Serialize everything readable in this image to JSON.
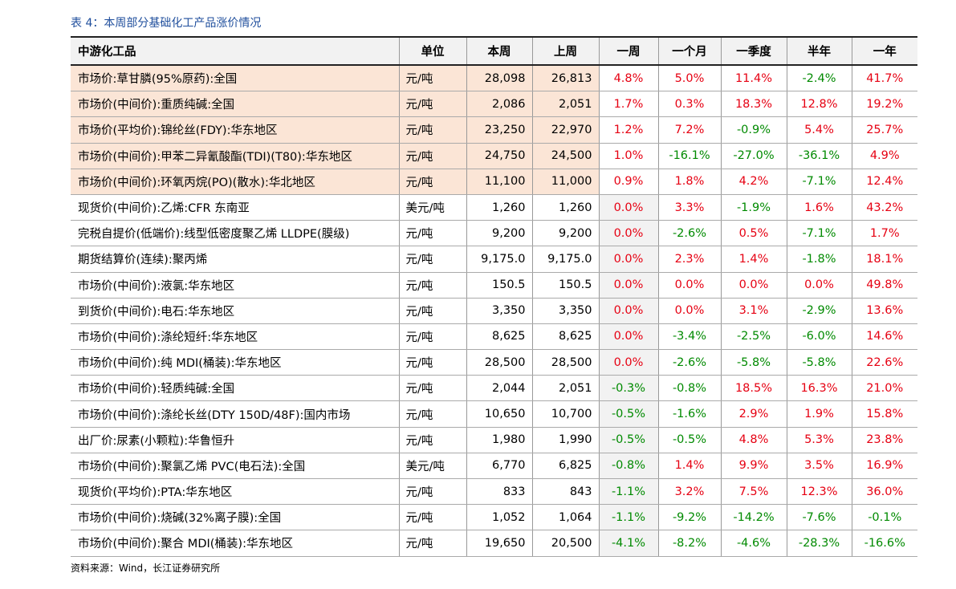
{
  "title": "表 4：本周部分基础化工产品涨价情况",
  "table": {
    "header": [
      "中游化工品",
      "单位",
      "本周",
      "上周",
      "一周",
      "一个月",
      "一季度",
      "半年",
      "一年"
    ],
    "rows": [
      [
        "市场价:草甘膦(95%原药):全国",
        "元/吨",
        "28,098",
        "26,813",
        "4.8%",
        "5.0%",
        "11.4%",
        "-2.4%",
        "41.7%"
      ],
      [
        "市场价(中间价):重质纯碱:全国",
        "元/吨",
        "2,086",
        "2,051",
        "1.7%",
        "0.3%",
        "18.3%",
        "12.8%",
        "19.2%"
      ],
      [
        "市场价(平均价):锦纶丝(FDY):华东地区",
        "元/吨",
        "23,250",
        "22,970",
        "1.2%",
        "7.2%",
        "-0.9%",
        "5.4%",
        "25.7%"
      ],
      [
        "市场价(中间价):甲苯二异氰酸酯(TDI)(T80):华东地区",
        "元/吨",
        "24,750",
        "24,500",
        "1.0%",
        "-16.1%",
        "-27.0%",
        "-36.1%",
        "4.9%"
      ],
      [
        "市场价(中间价):环氧丙烷(PO)(散水):华北地区",
        "元/吨",
        "11,100",
        "11,000",
        "0.9%",
        "1.8%",
        "4.2%",
        "-7.1%",
        "12.4%"
      ],
      [
        "现货价(中间价):乙烯:CFR 东南亚",
        "美元/吨",
        "1,260",
        "1,260",
        "0.0%",
        "3.3%",
        "-1.9%",
        "1.6%",
        "43.2%"
      ],
      [
        "完税自提价(低端价):线型低密度聚乙烯 LLDPE(膜级)",
        "元/吨",
        "9,200",
        "9,200",
        "0.0%",
        "-2.6%",
        "0.5%",
        "-7.1%",
        "1.7%"
      ],
      [
        "期货结算价(连续):聚丙烯",
        "元/吨",
        "9,175.0",
        "9,175.0",
        "0.0%",
        "2.3%",
        "1.4%",
        "-1.8%",
        "18.1%"
      ],
      [
        "市场价(中间价):液氯:华东地区",
        "元/吨",
        "150.5",
        "150.5",
        "0.0%",
        "0.0%",
        "0.0%",
        "0.0%",
        "49.8%"
      ],
      [
        "到货价(中间价):电石:华东地区",
        "元/吨",
        "3,350",
        "3,350",
        "0.0%",
        "0.0%",
        "3.1%",
        "-2.9%",
        "13.6%"
      ],
      [
        "市场价(中间价):涤纶短纤:华东地区",
        "元/吨",
        "8,625",
        "8,625",
        "0.0%",
        "-3.4%",
        "-2.5%",
        "-6.0%",
        "14.6%"
      ],
      [
        "市场价(中间价):纯 MDI(桶装):华东地区",
        "元/吨",
        "28,500",
        "28,500",
        "0.0%",
        "-2.6%",
        "-5.8%",
        "-5.8%",
        "22.6%"
      ],
      [
        "市场价(中间价):轻质纯碱:全国",
        "元/吨",
        "2,044",
        "2,051",
        "-0.3%",
        "-0.8%",
        "18.5%",
        "16.3%",
        "21.0%"
      ],
      [
        "市场价(中间价):涤纶长丝(DTY 150D/48F):国内市场",
        "元/吨",
        "10,650",
        "10,700",
        "-0.5%",
        "-1.6%",
        "2.9%",
        "1.9%",
        "15.8%"
      ],
      [
        "出厂价:尿素(小颗粒):华鲁恒升",
        "元/吨",
        "1,980",
        "1,990",
        "-0.5%",
        "-0.5%",
        "4.8%",
        "5.3%",
        "23.8%"
      ],
      [
        "市场价(中间价):聚氯乙烯 PVC(电石法):全国",
        "美元/吨",
        "6,770",
        "6,825",
        "-0.8%",
        "1.4%",
        "9.9%",
        "3.5%",
        "16.9%"
      ],
      [
        "现货价(平均价):PTA:华东地区",
        "元/吨",
        "833",
        "843",
        "-1.1%",
        "3.2%",
        "7.5%",
        "12.3%",
        "36.0%"
      ],
      [
        "市场价(中间价):烧碱(32%离子膜):全国",
        "元/吨",
        "1,052",
        "1,064",
        "-1.1%",
        "-9.2%",
        "-14.2%",
        "-7.6%",
        "-0.1%"
      ],
      [
        "市场价(中间价):聚合 MDI(桶装):华东地区",
        "元/吨",
        "19,650",
        "20,500",
        "-4.1%",
        "-8.2%",
        "-4.6%",
        "-28.3%",
        "-16.6%"
      ]
    ]
  },
  "source": "资料来源：Wind，长江证券研究所"
}
